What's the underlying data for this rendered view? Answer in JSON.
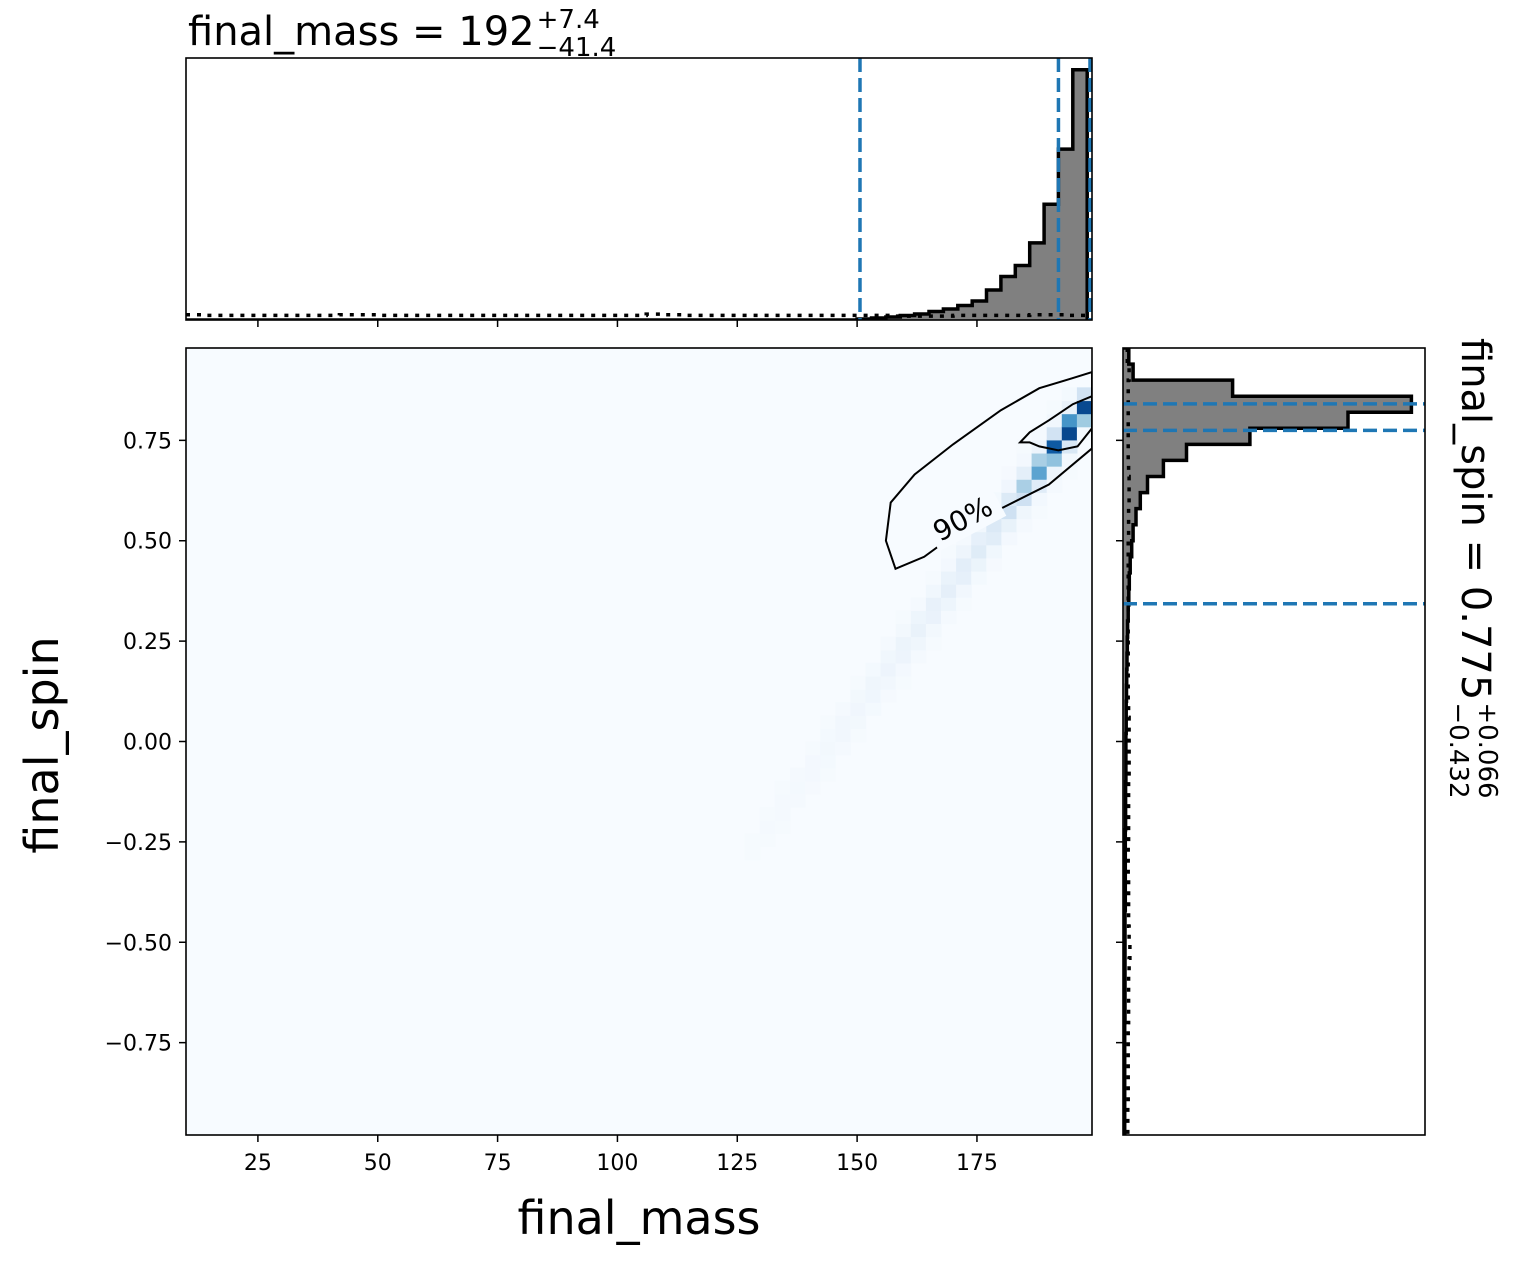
{
  "chart_data": {
    "type": "corner",
    "top_title": {
      "param": "final_mass",
      "median": "192",
      "plus": "+7.4",
      "minus": "−41.4"
    },
    "right_title": {
      "param": "final_spin",
      "median": "0.775",
      "plus": "+0.066",
      "minus": "−0.432"
    },
    "xlabel": "final_mass",
    "ylabel": "final_spin",
    "xlim": [
      10,
      199
    ],
    "ylim": [
      -0.98,
      0.98
    ],
    "xticks": [
      25,
      50,
      75,
      100,
      125,
      150,
      175
    ],
    "xtick_labels": [
      "25",
      "50",
      "75",
      "100",
      "125",
      "150",
      "175"
    ],
    "yticks": [
      0.75,
      0.5,
      0.25,
      0.0,
      -0.25,
      -0.5,
      -0.75
    ],
    "ytick_labels": [
      "0.75",
      "0.50",
      "0.25",
      "0.00",
      "−0.25",
      "−0.50",
      "−0.75"
    ],
    "contour_label": "90%",
    "colors": {
      "hist_fill": "#808080",
      "quantile_line": "#1f77b4",
      "density_low": "#f7fbff",
      "density_high": "#08306b"
    },
    "mass_quantiles": [
      150.6,
      192.0,
      199.4
    ],
    "spin_quantiles": [
      0.343,
      0.775,
      0.841
    ],
    "mass_posterior_hist": {
      "edges": [
        10,
        150,
        153,
        156,
        159,
        162,
        165,
        168,
        171,
        174,
        177,
        180,
        183,
        186,
        189,
        192,
        195,
        198,
        199
      ],
      "density": [
        0.0,
        0.004,
        0.008,
        0.012,
        0.018,
        0.024,
        0.034,
        0.044,
        0.058,
        0.076,
        0.12,
        0.174,
        0.218,
        0.308,
        0.463,
        0.683,
        1.0,
        0.0
      ]
    },
    "mass_prior_hist": {
      "x_start": 10,
      "bin_width": 4,
      "density": [
        0.08,
        0.07,
        0.07,
        0.07,
        0.07,
        0.07,
        0.07,
        0.07,
        0.08,
        0.08,
        0.07,
        0.07,
        0.07,
        0.07,
        0.07,
        0.07,
        0.07,
        0.07,
        0.07,
        0.07,
        0.07,
        0.07,
        0.07,
        0.07,
        0.09,
        0.08,
        0.07,
        0.07,
        0.07,
        0.07,
        0.07,
        0.07,
        0.07,
        0.07,
        0.07,
        0.07,
        0.07,
        0.06,
        0.06,
        0.06,
        0.07,
        0.07,
        0.07,
        0.07,
        0.08,
        0.08,
        0.07
      ]
    },
    "spin_posterior_hist": {
      "edges": [
        0.98,
        0.94,
        0.9,
        0.86,
        0.82,
        0.78,
        0.74,
        0.7,
        0.66,
        0.62,
        0.58,
        0.54,
        0.5,
        0.46,
        0.42,
        0.38,
        0.34,
        0.3,
        0.26,
        0.22,
        0.18,
        0.14,
        0.1,
        0.06,
        0.02,
        -0.02,
        -0.06,
        -0.1,
        -0.14,
        -0.18,
        -0.22,
        -0.26,
        -0.3,
        -0.34,
        -0.38,
        -0.42,
        -0.46,
        -0.5,
        -0.54,
        -0.58,
        -0.62,
        -0.66,
        -0.7,
        -0.74,
        -0.78,
        -0.82,
        -0.86,
        -0.9,
        -0.94,
        -0.98
      ],
      "density": [
        0.02,
        0.035,
        0.38,
        1.0,
        0.78,
        0.44,
        0.22,
        0.14,
        0.085,
        0.06,
        0.045,
        0.035,
        0.03,
        0.025,
        0.022,
        0.02,
        0.018,
        0.016,
        0.015,
        0.014,
        0.013,
        0.012,
        0.011,
        0.011,
        0.01,
        0.01,
        0.01,
        0.009,
        0.009,
        0.009,
        0.008,
        0.008,
        0.008,
        0.008,
        0.008,
        0.007,
        0.007,
        0.007,
        0.007,
        0.007,
        0.007,
        0.007,
        0.006,
        0.006,
        0.006,
        0.006,
        0.006,
        0.006,
        0.006
      ]
    },
    "spin_prior_hist": {
      "edges": [
        0.98,
        0.94,
        0.9,
        0.86,
        0.82,
        0.78,
        0.74,
        0.7,
        0.66,
        0.62,
        0.58,
        0.54,
        0.5,
        0.46,
        0.42,
        0.38,
        0.34,
        0.3,
        0.26,
        0.22,
        0.18,
        0.14,
        0.1,
        0.06,
        0.02,
        -0.02,
        -0.06,
        -0.1,
        -0.14,
        -0.18,
        -0.22,
        -0.26,
        -0.3,
        -0.34,
        -0.38,
        -0.42,
        -0.46,
        -0.5,
        -0.54,
        -0.58,
        -0.62,
        -0.66,
        -0.7,
        -0.74,
        -0.78,
        -0.82,
        -0.86,
        -0.9,
        -0.94,
        -0.98
      ],
      "density": [
        0.05,
        0.07,
        0.06,
        0.06,
        0.06,
        0.06,
        0.06,
        0.065,
        0.07,
        0.07,
        0.065,
        0.065,
        0.06,
        0.06,
        0.06,
        0.06,
        0.06,
        0.06,
        0.06,
        0.06,
        0.06,
        0.06,
        0.065,
        0.07,
        0.07,
        0.07,
        0.07,
        0.065,
        0.065,
        0.065,
        0.065,
        0.06,
        0.06,
        0.065,
        0.065,
        0.065,
        0.07,
        0.08,
        0.07,
        0.065,
        0.065,
        0.065,
        0.06,
        0.06,
        0.06,
        0.06,
        0.06,
        0.055,
        0.055
      ]
    },
    "density_2d": {
      "mean": [
        195,
        0.79
      ],
      "sigma_along": 12,
      "sigma_across": 0.028,
      "slope": 0.0158
    },
    "contours": [
      {
        "level": "inner",
        "points": [
          [
            186,
            0.745
          ],
          [
            184,
            0.745
          ],
          [
            186,
            0.77
          ],
          [
            190,
            0.8
          ],
          [
            195,
            0.84
          ],
          [
            199,
            0.86
          ],
          [
            199,
            0.78
          ],
          [
            196,
            0.735
          ],
          [
            192,
            0.725
          ],
          [
            188,
            0.735
          ]
        ]
      },
      {
        "level": "90%",
        "points": [
          [
            199,
            0.92
          ],
          [
            195,
            0.905
          ],
          [
            188,
            0.88
          ],
          [
            180,
            0.825
          ],
          [
            170,
            0.74
          ],
          [
            162,
            0.665
          ],
          [
            157,
            0.595
          ],
          [
            156,
            0.5
          ],
          [
            158,
            0.43
          ],
          [
            164,
            0.46
          ],
          [
            172,
            0.53
          ],
          [
            180,
            0.58
          ],
          [
            190,
            0.64
          ],
          [
            199,
            0.73
          ]
        ]
      }
    ],
    "contour_label_at": [
      172,
      0.555
    ]
  }
}
